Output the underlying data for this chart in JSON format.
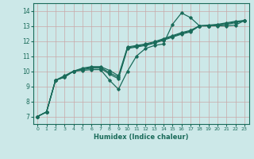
{
  "xlabel": "Humidex (Indice chaleur)",
  "xlim": [
    -0.5,
    23.5
  ],
  "ylim": [
    6.5,
    14.5
  ],
  "xticks": [
    0,
    1,
    2,
    3,
    4,
    5,
    6,
    7,
    8,
    9,
    10,
    11,
    12,
    13,
    14,
    15,
    16,
    17,
    18,
    19,
    20,
    21,
    22,
    23
  ],
  "yticks": [
    7,
    8,
    9,
    10,
    11,
    12,
    13,
    14
  ],
  "bg_color": "#cce8e8",
  "grid_color": "#b8d8d8",
  "line_color": "#1a6b5a",
  "lines": [
    {
      "x": [
        0,
        1,
        2,
        3,
        4,
        5,
        6,
        7,
        8,
        9,
        10,
        11,
        12,
        13,
        14,
        15,
        16,
        17,
        18,
        19,
        20,
        21,
        22,
        23
      ],
      "y": [
        7.0,
        7.3,
        9.4,
        9.6,
        10.0,
        10.05,
        10.1,
        10.1,
        9.4,
        8.8,
        10.0,
        11.0,
        11.5,
        11.7,
        11.8,
        13.1,
        13.85,
        13.55,
        13.0,
        13.0,
        13.0,
        13.0,
        13.05,
        13.35
      ]
    },
    {
      "x": [
        0,
        1,
        2,
        3,
        4,
        5,
        6,
        7,
        8,
        9,
        10,
        11,
        12,
        13,
        14,
        15,
        16,
        17,
        18,
        19,
        20,
        21,
        22,
        23
      ],
      "y": [
        7.0,
        7.3,
        9.4,
        9.6,
        10.0,
        10.1,
        10.2,
        10.2,
        9.8,
        9.5,
        11.5,
        11.6,
        11.7,
        11.85,
        12.05,
        12.25,
        12.45,
        12.6,
        13.0,
        13.0,
        13.05,
        13.1,
        13.2,
        13.35
      ]
    },
    {
      "x": [
        0,
        1,
        2,
        3,
        4,
        5,
        6,
        7,
        8,
        9,
        10,
        11,
        12,
        13,
        14,
        15,
        16,
        17,
        18,
        19,
        20,
        21,
        22,
        23
      ],
      "y": [
        7.0,
        7.3,
        9.4,
        9.65,
        10.0,
        10.15,
        10.25,
        10.25,
        9.9,
        9.6,
        11.55,
        11.65,
        11.75,
        11.9,
        12.1,
        12.3,
        12.5,
        12.65,
        13.0,
        13.0,
        13.05,
        13.15,
        13.25,
        13.35
      ]
    },
    {
      "x": [
        0,
        1,
        2,
        3,
        4,
        5,
        6,
        7,
        8,
        9,
        10,
        11,
        12,
        13,
        14,
        15,
        16,
        17,
        18,
        19,
        20,
        21,
        22,
        23
      ],
      "y": [
        7.0,
        7.3,
        9.4,
        9.7,
        10.0,
        10.2,
        10.3,
        10.3,
        10.05,
        9.7,
        11.6,
        11.7,
        11.8,
        11.95,
        12.15,
        12.35,
        12.55,
        12.7,
        13.0,
        13.05,
        13.1,
        13.2,
        13.3,
        13.35
      ]
    }
  ]
}
